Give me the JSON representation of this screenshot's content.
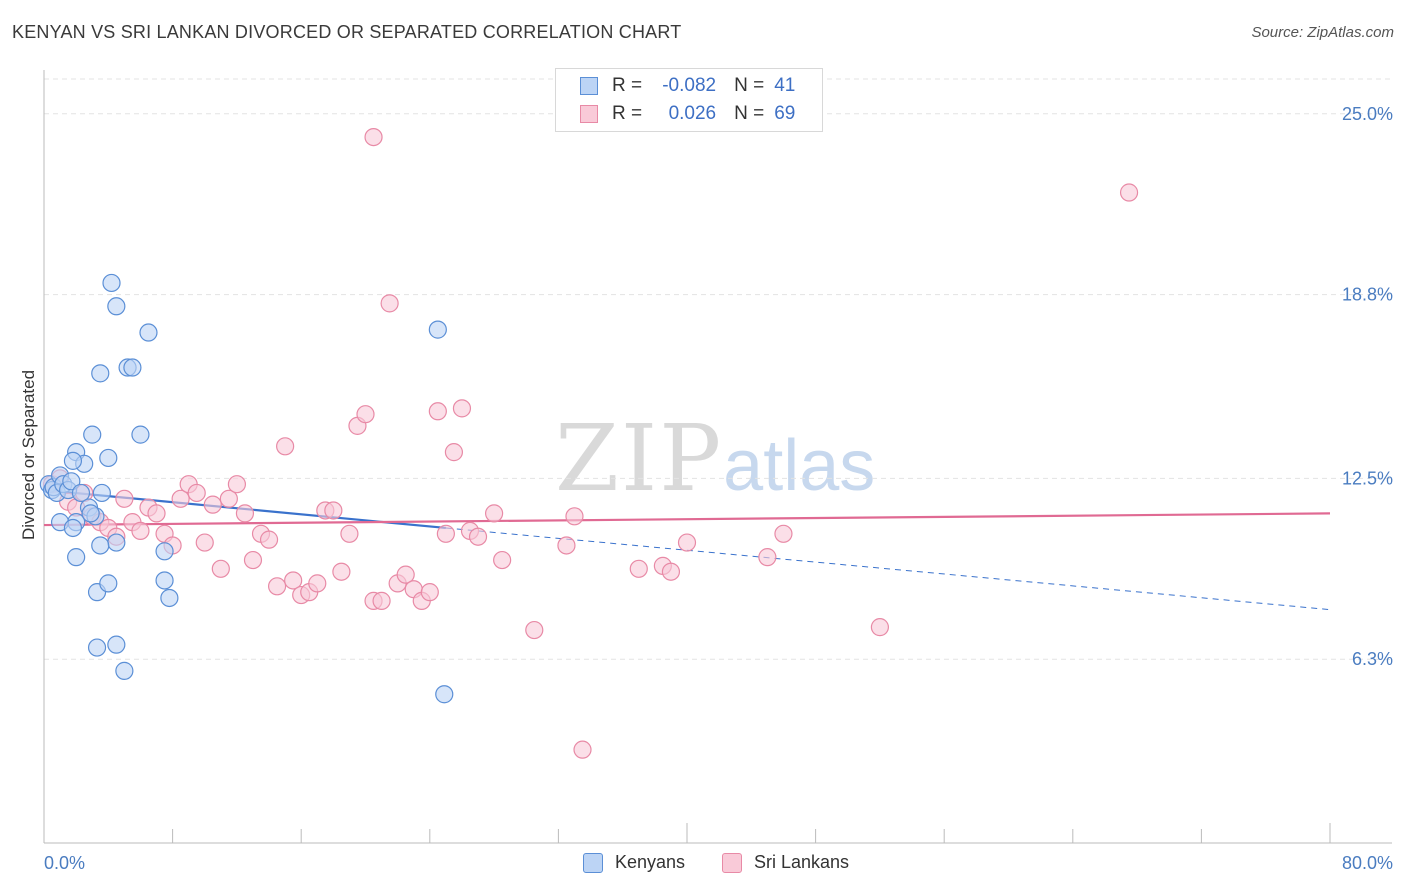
{
  "header": {
    "title": "KENYAN VS SRI LANKAN DIVORCED OR SEPARATED CORRELATION CHART",
    "source": "Source: ZipAtlas.com"
  },
  "watermark": {
    "zip": "ZIP",
    "atlas": "atlas"
  },
  "legend": {
    "rows": [
      {
        "r_label": "R =",
        "r_value": "-0.082",
        "n_label": "N =",
        "n_value": "41"
      },
      {
        "r_label": "R =",
        "r_value": "0.026",
        "n_label": "N =",
        "n_value": "69"
      }
    ]
  },
  "bottom_legend": {
    "kenyans": "Kenyans",
    "sri_lankans": "Sri Lankans"
  },
  "colors": {
    "kenyan_fill": "#bcd4f5",
    "kenyan_stroke": "#5b8fd6",
    "kenyan_line": "#3a72cc",
    "srilankan_fill": "#f9cad8",
    "srilankan_stroke": "#e88aa6",
    "srilankan_line": "#e06a93",
    "grid": "#e3e3e3",
    "tick_text": "#4a7cc0"
  },
  "chart_data": {
    "type": "scatter",
    "title": "KENYAN VS SRI LANKAN DIVORCED OR SEPARATED CORRELATION CHART",
    "xlabel": "",
    "ylabel": "Divorced or Separated",
    "xlim": [
      0,
      80
    ],
    "ylim": [
      0,
      26.5
    ],
    "x_tick_labels": [
      "0.0%",
      "80.0%"
    ],
    "y_ticks": [
      6.3,
      12.5,
      18.8,
      25.0
    ],
    "y_tick_labels": [
      "6.3%",
      "12.5%",
      "18.8%",
      "25.0%"
    ],
    "grid": true,
    "legend_position": "top-center",
    "series": [
      {
        "name": "Kenyans",
        "r": -0.082,
        "n": 41,
        "trend": {
          "x": [
            0,
            25
          ],
          "y": [
            12.1,
            10.8
          ],
          "dashed_to": [
            80,
            8.0
          ]
        },
        "points": [
          [
            0.3,
            12.3
          ],
          [
            0.5,
            12.1
          ],
          [
            0.6,
            12.2
          ],
          [
            0.8,
            12.0
          ],
          [
            1.0,
            12.6
          ],
          [
            1.2,
            12.3
          ],
          [
            1.5,
            12.1
          ],
          [
            1.7,
            12.4
          ],
          [
            2.0,
            13.4
          ],
          [
            2.3,
            12.0
          ],
          [
            2.5,
            13.0
          ],
          [
            1.8,
            13.1
          ],
          [
            2.8,
            11.5
          ],
          [
            3.0,
            14.0
          ],
          [
            3.2,
            11.2
          ],
          [
            2.0,
            11.0
          ],
          [
            1.0,
            11.0
          ],
          [
            1.8,
            10.8
          ],
          [
            4.0,
            13.2
          ],
          [
            4.5,
            10.3
          ],
          [
            3.5,
            10.2
          ],
          [
            2.0,
            9.8
          ],
          [
            3.3,
            8.6
          ],
          [
            4.0,
            8.9
          ],
          [
            3.3,
            6.7
          ],
          [
            4.5,
            6.8
          ],
          [
            5.0,
            5.9
          ],
          [
            3.5,
            16.1
          ],
          [
            4.2,
            19.2
          ],
          [
            4.5,
            18.4
          ],
          [
            5.2,
            16.3
          ],
          [
            5.5,
            16.3
          ],
          [
            6.0,
            14.0
          ],
          [
            6.5,
            17.5
          ],
          [
            7.5,
            10.0
          ],
          [
            7.5,
            9.0
          ],
          [
            7.8,
            8.4
          ],
          [
            3.6,
            12.0
          ],
          [
            2.9,
            11.3
          ],
          [
            24.5,
            17.6
          ],
          [
            24.9,
            5.1
          ]
        ]
      },
      {
        "name": "Sri Lankans",
        "r": 0.026,
        "n": 69,
        "trend": {
          "x": [
            0,
            80
          ],
          "y": [
            10.9,
            11.3
          ]
        },
        "points": [
          [
            0.5,
            12.3
          ],
          [
            1.0,
            12.5
          ],
          [
            1.5,
            11.7
          ],
          [
            2.0,
            11.5
          ],
          [
            2.5,
            12.0
          ],
          [
            3.0,
            11.2
          ],
          [
            3.5,
            11.0
          ],
          [
            4.0,
            10.8
          ],
          [
            4.5,
            10.5
          ],
          [
            5.0,
            11.8
          ],
          [
            5.5,
            11.0
          ],
          [
            6.0,
            10.7
          ],
          [
            6.5,
            11.5
          ],
          [
            7.0,
            11.3
          ],
          [
            7.5,
            10.6
          ],
          [
            8.0,
            10.2
          ],
          [
            8.5,
            11.8
          ],
          [
            9.0,
            12.3
          ],
          [
            9.5,
            12.0
          ],
          [
            10.0,
            10.3
          ],
          [
            10.5,
            11.6
          ],
          [
            11.0,
            9.4
          ],
          [
            11.5,
            11.8
          ],
          [
            12.0,
            12.3
          ],
          [
            12.5,
            11.3
          ],
          [
            13.0,
            9.7
          ],
          [
            13.5,
            10.6
          ],
          [
            14.0,
            10.4
          ],
          [
            14.5,
            8.8
          ],
          [
            15.0,
            13.6
          ],
          [
            15.5,
            9.0
          ],
          [
            16.0,
            8.5
          ],
          [
            16.5,
            8.6
          ],
          [
            17.0,
            8.9
          ],
          [
            17.5,
            11.4
          ],
          [
            18.0,
            11.4
          ],
          [
            18.5,
            9.3
          ],
          [
            19.0,
            10.6
          ],
          [
            19.5,
            14.3
          ],
          [
            20.0,
            14.7
          ],
          [
            20.5,
            8.3
          ],
          [
            21.0,
            8.3
          ],
          [
            21.5,
            18.5
          ],
          [
            22.0,
            8.9
          ],
          [
            22.5,
            9.2
          ],
          [
            23.0,
            8.7
          ],
          [
            23.5,
            8.3
          ],
          [
            24.0,
            8.6
          ],
          [
            24.5,
            14.8
          ],
          [
            25.0,
            10.6
          ],
          [
            25.5,
            13.4
          ],
          [
            26.0,
            14.9
          ],
          [
            20.5,
            24.2
          ],
          [
            26.5,
            10.7
          ],
          [
            27.0,
            10.5
          ],
          [
            28.0,
            11.3
          ],
          [
            28.5,
            9.7
          ],
          [
            30.5,
            7.3
          ],
          [
            32.5,
            10.2
          ],
          [
            33.0,
            11.2
          ],
          [
            33.5,
            3.2
          ],
          [
            37.0,
            9.4
          ],
          [
            38.5,
            9.5
          ],
          [
            39.0,
            9.3
          ],
          [
            40.0,
            10.3
          ],
          [
            45.0,
            9.8
          ],
          [
            46.0,
            10.6
          ],
          [
            52.0,
            7.4
          ],
          [
            67.5,
            22.3
          ]
        ]
      }
    ]
  }
}
